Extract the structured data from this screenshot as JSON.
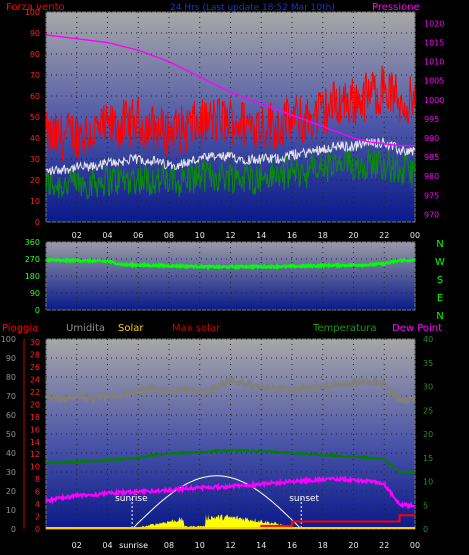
{
  "wind_panel": {
    "type": "line",
    "left_label": "Forza vento",
    "center_label": "24 Hrs (Last update 18:52 Mar 10th)",
    "right_label": "Pressione",
    "y_left_ticks": [
      0,
      10,
      20,
      30,
      40,
      50,
      60,
      70,
      80,
      90,
      100
    ],
    "y_right_ticks": [
      970,
      975,
      980,
      985,
      990,
      995,
      1000,
      1005,
      1010,
      1015,
      1020
    ],
    "ylim_left": [
      0,
      100
    ],
    "ylim_right": [
      968,
      1023
    ],
    "colors": {
      "gust": "#ff0000",
      "avg": "#0a8a0a",
      "ten_min": "#e6e6e6",
      "pressure": "#ff00ff"
    },
    "series_hourly": {
      "gust": [
        38,
        38,
        40,
        40,
        42,
        44,
        45,
        42,
        40,
        42,
        44,
        46,
        46,
        44,
        44,
        44,
        46,
        46,
        50,
        55,
        55,
        58,
        62,
        55
      ],
      "average": [
        18,
        18,
        18,
        19,
        20,
        20,
        21,
        20,
        19,
        20,
        22,
        22,
        22,
        21,
        21,
        22,
        24,
        24,
        26,
        26,
        27,
        28,
        28,
        24
      ],
      "ten_min": [
        24,
        25,
        26,
        26,
        28,
        29,
        30,
        29,
        27,
        28,
        30,
        31,
        31,
        30,
        30,
        30,
        32,
        33,
        35,
        36,
        36,
        38,
        38,
        34
      ],
      "pressure": [
        1017,
        1016.5,
        1016,
        1015.5,
        1015,
        1014,
        1013,
        1011.5,
        1010,
        1008,
        1006,
        1004,
        1002,
        1000.5,
        999,
        997.5,
        996,
        994.5,
        993,
        991.5,
        990,
        989,
        988.5,
        988
      ]
    }
  },
  "direction_panel": {
    "type": "line",
    "y_ticks": [
      0,
      90,
      180,
      270,
      360
    ],
    "ylim": [
      0,
      360
    ],
    "compass_labels": [
      "N",
      "W",
      "S",
      "E",
      "N"
    ],
    "color": "#00ff00",
    "series_hourly": [
      265,
      262,
      262,
      260,
      258,
      240,
      238,
      236,
      234,
      232,
      230,
      228,
      228,
      230,
      229,
      230,
      231,
      233,
      235,
      237,
      238,
      239,
      245,
      262
    ]
  },
  "rain_panel": {
    "type": "line",
    "labels": {
      "rain": "Pioggia",
      "humidity": "Umidita",
      "solar": "Solar",
      "max_solar": "Max solar",
      "temperature": "Temperatura",
      "dew_point": "Dew Point"
    },
    "y_humidity_ticks": [
      0,
      10,
      20,
      30,
      40,
      50,
      60,
      70,
      80,
      90,
      100
    ],
    "y_rain_ticks": [
      0,
      2,
      4,
      6,
      8,
      10,
      12,
      14,
      16,
      18,
      20,
      22,
      24,
      26,
      28,
      30
    ],
    "y_temp_ticks": [
      0,
      5,
      10,
      15,
      20,
      25,
      30,
      35,
      40
    ],
    "ylim_humidity": [
      0,
      100
    ],
    "ylim_rain": [
      0,
      30.5
    ],
    "ylim_temp": [
      0,
      40
    ],
    "colors": {
      "rain": "#ff0000",
      "humidity": "#808080",
      "solar": "#ffff00",
      "max_solar": "#ff0000",
      "temperature": "#008000",
      "dew_point": "#ff00ff"
    },
    "sunrise_label": "sunrise",
    "sunset_label": "sunset",
    "sunrise_hour": 5.6,
    "sunset_hour": 16.6,
    "series_hourly": {
      "humidity": [
        70,
        69,
        70,
        69,
        70,
        71,
        72,
        74,
        72,
        73,
        72,
        74,
        78,
        76,
        75,
        74,
        73,
        74,
        75,
        76,
        77,
        78,
        76,
        68
      ],
      "temperature": [
        14,
        14,
        14.2,
        14.3,
        14.5,
        14.7,
        15,
        15.5,
        15.8,
        16,
        16.2,
        16.4,
        16.5,
        16.5,
        16.4,
        16.2,
        16,
        15.8,
        15.6,
        15.4,
        15.2,
        15,
        14.8,
        12
      ],
      "dew_point": [
        6,
        6.5,
        7,
        7.2,
        7.5,
        7.7,
        7.8,
        8,
        8.2,
        8.5,
        8.7,
        8.8,
        9,
        9.2,
        9.5,
        9.7,
        10,
        10.2,
        10.4,
        10.5,
        10.3,
        10,
        9.5,
        5
      ],
      "rain": [
        0,
        0,
        0,
        0,
        0,
        0,
        0,
        0,
        0,
        0,
        0,
        0,
        0,
        0,
        0,
        0,
        0,
        0,
        0,
        0,
        0,
        0,
        0,
        0
      ],
      "rain_step": [
        0,
        0,
        0,
        0,
        0,
        0,
        0,
        0,
        0,
        0,
        0,
        0,
        0,
        0,
        0.5,
        0.5,
        1.2,
        1.2,
        1.2,
        1.2,
        1.2,
        1.2,
        1.2,
        2.2
      ]
    }
  },
  "x_axis": {
    "hours": [
      "02",
      "04",
      "06",
      "08",
      "10",
      "12",
      "14",
      "16",
      "18",
      "20",
      "22",
      "00"
    ]
  }
}
